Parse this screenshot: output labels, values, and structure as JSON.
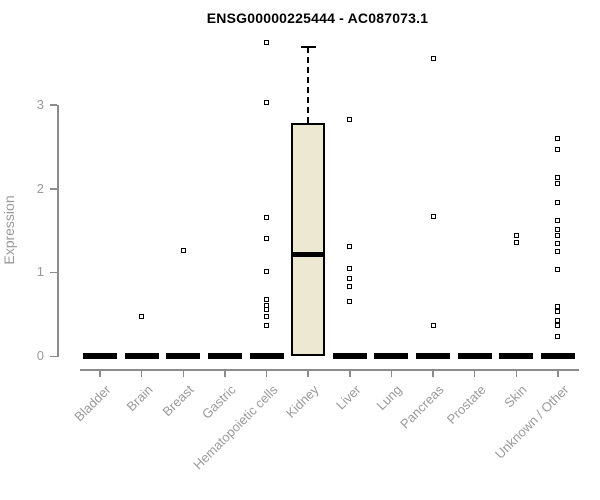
{
  "window": {
    "background": "#ffffff"
  },
  "chart_data": {
    "type": "boxplot",
    "title": "ENSG00000225444 - AC087073.1",
    "xlabel": "",
    "ylabel": "Expression",
    "yticks": [
      0,
      1,
      2,
      3
    ],
    "ylim": [
      0,
      3.85
    ],
    "grid": false,
    "legend": "none",
    "categories": [
      "Bladder",
      "Brain",
      "Breast",
      "Gastric",
      "Hematopoietic cells",
      "Kidney",
      "Liver",
      "Lung",
      "Pancreas",
      "Prostate",
      "Skin",
      "Unknown / Other"
    ],
    "boxes": [
      {
        "category": "Bladder",
        "q1": 0,
        "median": 0,
        "q3": 0,
        "whisker_low": 0,
        "whisker_high": 0,
        "outliers": []
      },
      {
        "category": "Brain",
        "q1": 0,
        "median": 0,
        "q3": 0,
        "whisker_low": 0,
        "whisker_high": 0,
        "outliers": [
          0.47
        ]
      },
      {
        "category": "Breast",
        "q1": 0,
        "median": 0,
        "q3": 0,
        "whisker_low": 0,
        "whisker_high": 0,
        "outliers": [
          1.26
        ]
      },
      {
        "category": "Gastric",
        "q1": 0,
        "median": 0,
        "q3": 0,
        "whisker_low": 0,
        "whisker_high": 0,
        "outliers": []
      },
      {
        "category": "Hematopoietic cells",
        "q1": 0,
        "median": 0,
        "q3": 0,
        "whisker_low": 0,
        "whisker_high": 0,
        "outliers": [
          3.75,
          3.03,
          1.66,
          1.4,
          1.01,
          0.68,
          0.6,
          0.55,
          0.47,
          0.37
        ]
      },
      {
        "category": "Kidney",
        "q1": 0,
        "median": 1.21,
        "q3": 2.79,
        "whisker_low": 0,
        "whisker_high": 3.69,
        "outliers": []
      },
      {
        "category": "Liver",
        "q1": 0,
        "median": 0,
        "q3": 0,
        "whisker_low": 0,
        "whisker_high": 0,
        "outliers": [
          2.83,
          1.31,
          1.05,
          0.93,
          0.83,
          0.65
        ]
      },
      {
        "category": "Lung",
        "q1": 0,
        "median": 0,
        "q3": 0,
        "whisker_low": 0,
        "whisker_high": 0,
        "outliers": []
      },
      {
        "category": "Pancreas",
        "q1": 0,
        "median": 0,
        "q3": 0,
        "whisker_low": 0,
        "whisker_high": 0,
        "outliers": [
          3.56,
          1.67,
          0.36
        ]
      },
      {
        "category": "Prostate",
        "q1": 0,
        "median": 0,
        "q3": 0,
        "whisker_low": 0,
        "whisker_high": 0,
        "outliers": []
      },
      {
        "category": "Skin",
        "q1": 0,
        "median": 0,
        "q3": 0,
        "whisker_low": 0,
        "whisker_high": 0,
        "outliers": [
          1.44,
          1.36
        ]
      },
      {
        "category": "Unknown / Other",
        "q1": 0,
        "median": 0,
        "q3": 0,
        "whisker_low": 0,
        "whisker_high": 0,
        "outliers": [
          2.6,
          2.47,
          2.13,
          2.06,
          1.84,
          1.62,
          1.51,
          1.44,
          1.34,
          1.25,
          1.03,
          0.59,
          0.53,
          0.43,
          0.37,
          0.23
        ]
      }
    ],
    "colors": {
      "box_fill": "#EDE8D1",
      "box_border": "#000000",
      "median": "#000000",
      "outlier_border": "#000000",
      "outlier_fill": "#ffffff",
      "axis": "#8c8c8c",
      "tick_label": "#9a9a9a",
      "title": "#000000"
    }
  }
}
